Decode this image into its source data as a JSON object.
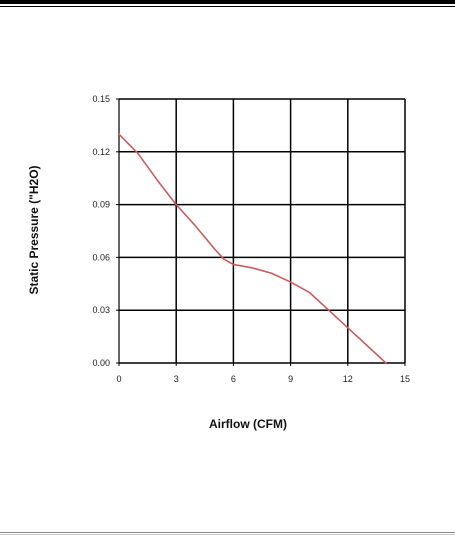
{
  "colors": {
    "grid": "#000000",
    "series_line": "#cd5c5c",
    "plot_background": "#ffffff"
  },
  "chart_data": {
    "type": "line",
    "title": "",
    "xlabel": "Airflow (CFM)",
    "ylabel": "Static Pressure  (\"H2O)",
    "xlim": [
      0,
      15
    ],
    "ylim": [
      0,
      0.15
    ],
    "x_ticks": [
      0,
      3,
      6,
      9,
      12,
      15
    ],
    "x_tick_labels": [
      "0",
      "3",
      "6",
      "9",
      "12",
      "15"
    ],
    "y_ticks": [
      0,
      0.03,
      0.06,
      0.09,
      0.12,
      0.15
    ],
    "y_tick_labels": [
      "0.00",
      "0.03",
      "0.06",
      "0.09",
      "0.12",
      "0.15"
    ],
    "grid": true,
    "legend": "none",
    "series": [
      {
        "x": [
          0,
          1,
          2,
          3,
          4,
          5,
          5.5,
          6,
          7,
          8,
          9,
          10,
          11,
          12,
          13,
          14
        ],
        "y": [
          0.13,
          0.119,
          0.104,
          0.09,
          0.078,
          0.065,
          0.059,
          0.056,
          0.054,
          0.051,
          0.046,
          0.04,
          0.03,
          0.02,
          0.01,
          0.0
        ]
      }
    ]
  }
}
